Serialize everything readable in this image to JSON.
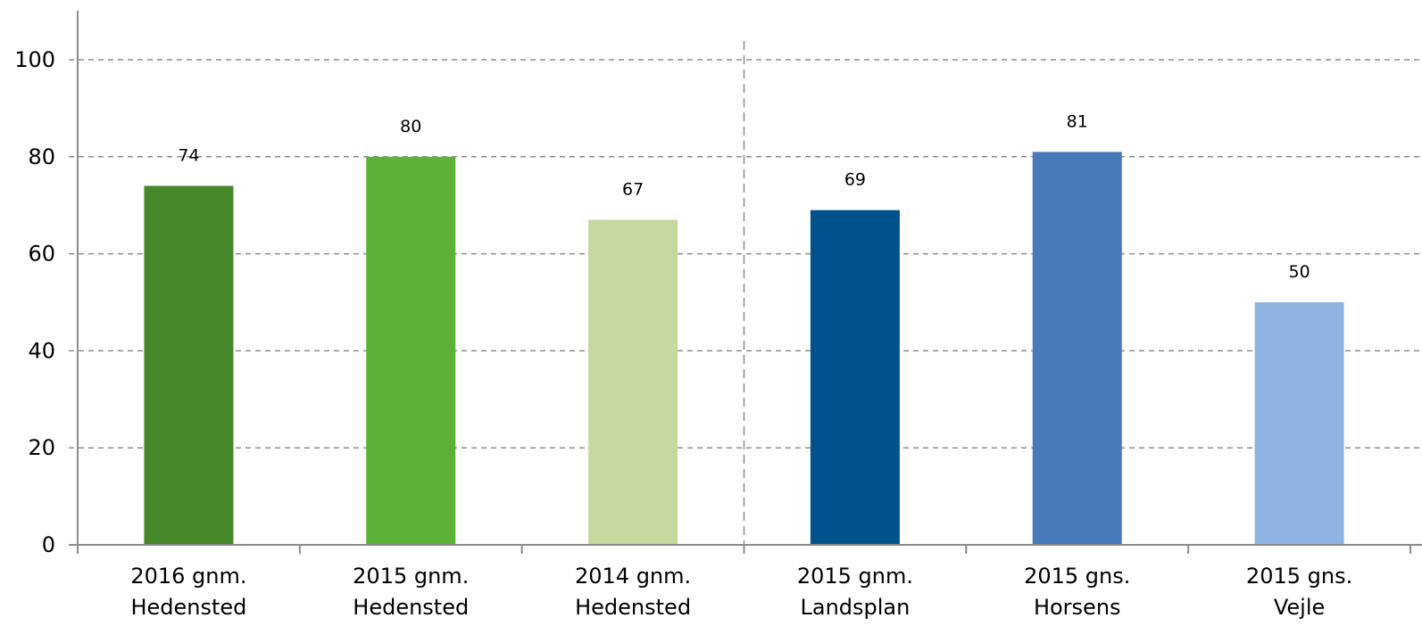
{
  "chart_data": {
    "type": "bar",
    "categories": [
      [
        "2016 gnm.",
        "Hedensted"
      ],
      [
        "2015 gnm.",
        "Hedensted"
      ],
      [
        "2014 gnm.",
        "Hedensted"
      ],
      [
        "2015 gnm.",
        "Landsplan"
      ],
      [
        "2015 gns.",
        "Horsens"
      ],
      [
        "2015 gns.",
        "Vejle"
      ]
    ],
    "values": [
      74,
      80,
      67,
      69,
      81,
      50
    ],
    "colors": [
      "#468729",
      "#5cb238",
      "#c5d89d",
      "#00518c",
      "#487ab9",
      "#8eb3e0"
    ],
    "data_labels": [
      "74",
      "80",
      "67",
      "69",
      "81",
      "50"
    ],
    "ylim": [
      0,
      110
    ],
    "yticks": [
      0,
      20,
      40,
      60,
      80,
      100
    ],
    "grid": true,
    "separator_after_category_index": 2
  }
}
